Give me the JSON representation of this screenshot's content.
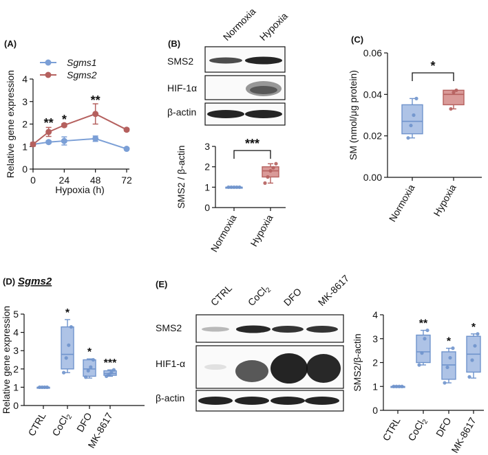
{
  "panels": {
    "A": {
      "label": "(A)"
    },
    "B": {
      "label": "(B)",
      "blot_columns": [
        "Normoxia",
        "Hypoxia"
      ],
      "blot_rows": [
        "SMS2",
        "HIF-1α",
        "β-actin"
      ]
    },
    "C": {
      "label": "(C)"
    },
    "D": {
      "label": "(D)",
      "title": "Sgms2"
    },
    "E": {
      "label": "(E)",
      "blot_columns": [
        "CTRL",
        "CoCl2",
        "DFO",
        "MK-8617"
      ],
      "blot_rows": [
        "SMS2",
        "HIF1-α",
        "β-actin"
      ]
    }
  },
  "chart_data": [
    {
      "id": "A",
      "type": "line",
      "title": "",
      "xlabel": "Hypoxia (h)",
      "ylabel": "Relative gene expression",
      "xlim": [
        0,
        72
      ],
      "ylim": [
        0,
        4
      ],
      "xticks": [
        "0",
        "24",
        "48",
        "72"
      ],
      "yticks": [
        "0",
        "1",
        "2",
        "3",
        "4"
      ],
      "legend": "top-left",
      "series": [
        {
          "name": "Sgms1",
          "color": "#7b9fd6",
          "x": [
            0,
            12,
            24,
            48,
            72
          ],
          "values": [
            1.1,
            1.2,
            1.25,
            1.35,
            0.9
          ],
          "err": [
            0.08,
            0.06,
            0.18,
            0.12,
            0.05
          ]
        },
        {
          "name": "Sgms2",
          "color": "#b5605e",
          "x": [
            0,
            12,
            24,
            48,
            72
          ],
          "values": [
            1.1,
            1.65,
            1.95,
            2.45,
            1.75
          ],
          "err": [
            0.08,
            0.2,
            0.07,
            0.45,
            0.06
          ]
        }
      ],
      "annotations": [
        {
          "text": "**",
          "x": 12,
          "y": 2.05
        },
        {
          "text": "*",
          "x": 24,
          "y": 2.2
        },
        {
          "text": "**",
          "x": 48,
          "y": 3.05
        }
      ]
    },
    {
      "id": "B",
      "type": "box",
      "ylabel": "SMS2 / β-actin",
      "ylim": [
        0,
        3
      ],
      "yticks": [
        "0",
        "1",
        "2",
        "3"
      ],
      "categories": [
        "Normoxia",
        "Hypoxia"
      ],
      "boxes": [
        {
          "min": 1,
          "q1": 1,
          "median": 1,
          "q3": 1,
          "max": 1,
          "points": [
            1,
            1,
            1,
            1,
            1
          ],
          "color": "#6f93cc",
          "fill": "#aec3e6"
        },
        {
          "min": 1.2,
          "q1": 1.5,
          "median": 1.8,
          "q3": 2.0,
          "max": 2.15,
          "points": [
            1.2,
            1.5,
            1.8,
            1.95,
            2.15
          ],
          "color": "#b5605e",
          "fill": "#d99a98"
        }
      ],
      "significance": "***"
    },
    {
      "id": "C",
      "type": "box",
      "ylabel": "SM (nmol/μg protein)",
      "ylim": [
        0,
        0.06
      ],
      "yticks": [
        "0.00",
        "0.02",
        "0.04",
        "0.06"
      ],
      "categories": [
        "Normoxia",
        "Hypoxia"
      ],
      "boxes": [
        {
          "min": 0.019,
          "q1": 0.021,
          "median": 0.027,
          "q3": 0.035,
          "max": 0.038,
          "points": [
            0.019,
            0.025,
            0.03,
            0.038
          ],
          "color": "#6f93cc",
          "fill": "#aec3e6"
        },
        {
          "min": 0.033,
          "q1": 0.035,
          "median": 0.04,
          "q3": 0.042,
          "max": 0.042,
          "points": [
            0.033,
            0.041,
            0.042
          ],
          "color": "#b5605e",
          "fill": "#d99a98"
        }
      ],
      "significance": "*"
    },
    {
      "id": "D",
      "type": "box",
      "ylabel": "Relative gene expression",
      "ylim": [
        0,
        5
      ],
      "yticks": [
        "0",
        "1",
        "2",
        "3",
        "4",
        "5"
      ],
      "categories": [
        "CTRL",
        "CoCl2",
        "DFO",
        "MK-8617"
      ],
      "boxes": [
        {
          "min": 1,
          "q1": 1,
          "median": 1,
          "q3": 1,
          "max": 1,
          "points": [
            1,
            1,
            1,
            1
          ],
          "color": "#6f93cc",
          "fill": "#aec3e6"
        },
        {
          "min": 1.8,
          "q1": 2.0,
          "median": 2.8,
          "q3": 4.3,
          "max": 4.7,
          "points": [
            1.8,
            2.6,
            3.3,
            4.3
          ],
          "color": "#6f93cc",
          "fill": "#aec3e6"
        },
        {
          "min": 1.5,
          "q1": 1.6,
          "median": 2.0,
          "q3": 2.5,
          "max": 2.55,
          "points": [
            1.55,
            1.9,
            2.1,
            2.5
          ],
          "color": "#6f93cc",
          "fill": "#aec3e6"
        },
        {
          "min": 1.6,
          "q1": 1.65,
          "median": 1.75,
          "q3": 1.9,
          "max": 1.95,
          "points": [
            1.6,
            1.7,
            1.8,
            1.95
          ],
          "color": "#6f93cc",
          "fill": "#aec3e6"
        }
      ],
      "significance_labels": [
        "",
        "*",
        "*",
        "***"
      ]
    },
    {
      "id": "E",
      "type": "box",
      "ylabel": "SMS2/β-actin",
      "ylim": [
        0,
        4
      ],
      "yticks": [
        "0",
        "1",
        "2",
        "3",
        "4"
      ],
      "categories": [
        "CTRL",
        "CoCl2",
        "DFO",
        "MK-8617"
      ],
      "boxes": [
        {
          "min": 1,
          "q1": 1,
          "median": 1,
          "q3": 1,
          "max": 1,
          "points": [
            1,
            1,
            1,
            1
          ],
          "color": "#6f93cc",
          "fill": "#aec3e6"
        },
        {
          "min": 1.9,
          "q1": 2.0,
          "median": 2.45,
          "q3": 3.15,
          "max": 3.35,
          "points": [
            1.9,
            2.4,
            3.0,
            3.35
          ],
          "color": "#6f93cc",
          "fill": "#aec3e6"
        },
        {
          "min": 1.15,
          "q1": 1.3,
          "median": 1.9,
          "q3": 2.45,
          "max": 2.6,
          "points": [
            1.15,
            1.8,
            2.2,
            2.6
          ],
          "color": "#6f93cc",
          "fill": "#aec3e6"
        },
        {
          "min": 1.35,
          "q1": 1.6,
          "median": 2.35,
          "q3": 3.1,
          "max": 3.2,
          "points": [
            1.4,
            2.1,
            2.7,
            3.2
          ],
          "color": "#6f93cc",
          "fill": "#aec3e6"
        }
      ],
      "significance_labels": [
        "",
        "**",
        "*",
        "*"
      ]
    }
  ]
}
